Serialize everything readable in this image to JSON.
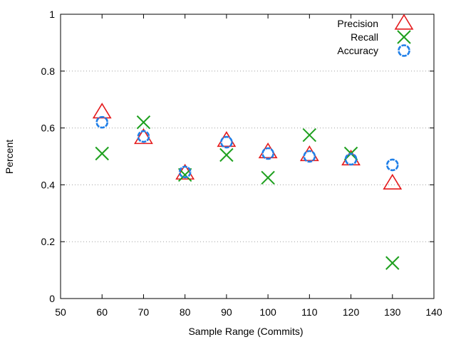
{
  "chart_data": {
    "type": "scatter",
    "title": "",
    "xlabel": "Sample Range (Commits)",
    "ylabel": "Percent",
    "xlim": [
      50,
      140
    ],
    "ylim": [
      0,
      1
    ],
    "x_ticks": [
      50,
      60,
      70,
      80,
      90,
      100,
      110,
      120,
      130,
      140
    ],
    "y_ticks": [
      0,
      0.2,
      0.4,
      0.6,
      0.8,
      1
    ],
    "y_tick_labels": [
      "0",
      "0.2",
      "0.4",
      "0.6",
      "0.8",
      "1"
    ],
    "grid": "horizontal-dotted",
    "legend_position": "top-right",
    "x": [
      60,
      70,
      80,
      90,
      100,
      110,
      120,
      130
    ],
    "series": [
      {
        "name": "Precision",
        "marker": "triangle",
        "color": "#e41a1c",
        "values": [
          0.655,
          0.565,
          0.44,
          0.555,
          0.515,
          0.505,
          0.49,
          0.405
        ]
      },
      {
        "name": "Recall",
        "marker": "x",
        "color": "#1ea01e",
        "values": [
          0.51,
          0.62,
          0.435,
          0.505,
          0.425,
          0.575,
          0.51,
          0.125
        ]
      },
      {
        "name": "Accuracy",
        "marker": "circle",
        "color": "#1f7fe8",
        "values": [
          0.62,
          0.57,
          0.445,
          0.55,
          0.51,
          0.5,
          0.49,
          0.47
        ]
      }
    ]
  }
}
